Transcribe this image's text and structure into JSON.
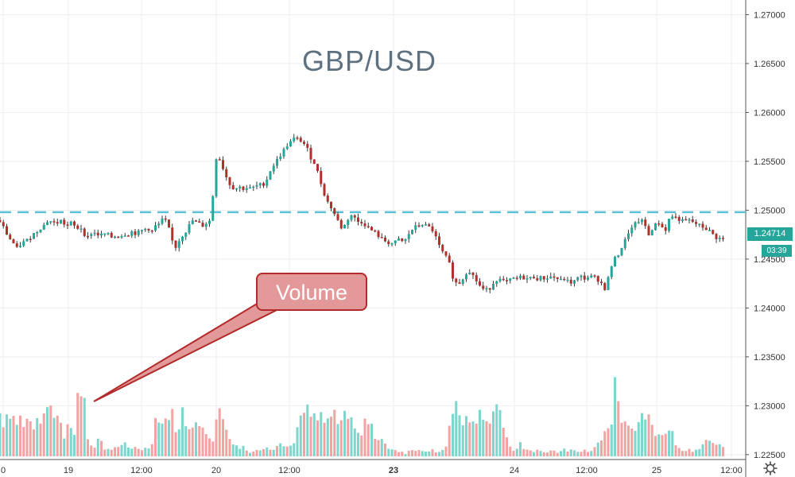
{
  "chart_data": {
    "type": "candlestick",
    "title": "GBP/USD",
    "y_axis": {
      "position": "right",
      "range": [
        1.2245,
        1.2715
      ],
      "ticks": [
        "1.27000",
        "1.26500",
        "1.26000",
        "1.25500",
        "1.25000",
        "1.24500",
        "1.24000",
        "1.23500",
        "1.23000",
        "1.22500"
      ]
    },
    "x_axis": {
      "ticks": [
        {
          "label": "0",
          "bold": false
        },
        {
          "label": "19",
          "bold": false
        },
        {
          "label": "12:00",
          "bold": false
        },
        {
          "label": "20",
          "bold": false
        },
        {
          "label": "12:00",
          "bold": false
        },
        {
          "label": "23",
          "bold": true
        },
        {
          "label": "24",
          "bold": false
        },
        {
          "label": "12:00",
          "bold": false
        },
        {
          "label": "25",
          "bold": false
        },
        {
          "label": "12:00",
          "bold": false
        }
      ]
    },
    "reference_line": {
      "value": 1.2498,
      "style": "dashed",
      "color": "#5bc0d8"
    },
    "last_price": "1.24714",
    "countdown": "03:39",
    "annotation": {
      "text": "Volume"
    },
    "grid": true,
    "colors": {
      "up": "#26a69a",
      "down": "#b0312b",
      "volume_up": "#7fd6cc",
      "volume_down": "#f4a3a3"
    },
    "price_path": [
      [
        0,
        1.249
      ],
      [
        5,
        1.2488
      ],
      [
        10,
        1.248
      ],
      [
        15,
        1.2472
      ],
      [
        20,
        1.2468
      ],
      [
        25,
        1.246
      ],
      [
        30,
        1.2465
      ],
      [
        35,
        1.2468
      ],
      [
        40,
        1.247
      ],
      [
        45,
        1.2475
      ],
      [
        50,
        1.2478
      ],
      [
        55,
        1.2482
      ],
      [
        60,
        1.2485
      ],
      [
        65,
        1.249
      ],
      [
        70,
        1.2488
      ],
      [
        75,
        1.2486
      ],
      [
        80,
        1.249
      ],
      [
        85,
        1.2486
      ],
      [
        90,
        1.2484
      ],
      [
        95,
        1.2488
      ],
      [
        100,
        1.248
      ],
      [
        105,
        1.2484
      ],
      [
        110,
        1.2476
      ],
      [
        115,
        1.2472
      ],
      [
        120,
        1.2478
      ],
      [
        125,
        1.2476
      ],
      [
        130,
        1.2474
      ],
      [
        135,
        1.2476
      ],
      [
        140,
        1.2475
      ],
      [
        145,
        1.2472
      ],
      [
        150,
        1.2474
      ],
      [
        155,
        1.2473
      ],
      [
        160,
        1.2476
      ],
      [
        165,
        1.2475
      ],
      [
        170,
        1.2478
      ],
      [
        175,
        1.2476
      ],
      [
        180,
        1.2478
      ],
      [
        185,
        1.248
      ],
      [
        190,
        1.2482
      ],
      [
        195,
        1.2478
      ],
      [
        200,
        1.2484
      ],
      [
        205,
        1.2486
      ],
      [
        210,
        1.2492
      ],
      [
        215,
        1.2486
      ],
      [
        220,
        1.247
      ],
      [
        225,
        1.2462
      ],
      [
        230,
        1.247
      ],
      [
        235,
        1.2476
      ],
      [
        240,
        1.248
      ],
      [
        245,
        1.249
      ],
      [
        250,
        1.2488
      ],
      [
        255,
        1.2486
      ],
      [
        260,
        1.2484
      ],
      [
        265,
        1.2488
      ],
      [
        270,
        1.249
      ],
      [
        275,
        1.2552
      ],
      [
        278,
        1.2556
      ],
      [
        282,
        1.255
      ],
      [
        286,
        1.254
      ],
      [
        290,
        1.2532
      ],
      [
        295,
        1.2524
      ],
      [
        300,
        1.2522
      ],
      [
        305,
        1.2524
      ],
      [
        310,
        1.2522
      ],
      [
        315,
        1.2523
      ],
      [
        320,
        1.2522
      ],
      [
        325,
        1.2524
      ],
      [
        330,
        1.2526
      ],
      [
        335,
        1.2526
      ],
      [
        340,
        1.2532
      ],
      [
        345,
        1.2542
      ],
      [
        350,
        1.2548
      ],
      [
        355,
        1.2554
      ],
      [
        360,
        1.256
      ],
      [
        365,
        1.2566
      ],
      [
        370,
        1.257
      ],
      [
        375,
        1.2574
      ],
      [
        380,
        1.2572
      ],
      [
        385,
        1.257
      ],
      [
        390,
        1.2564
      ],
      [
        395,
        1.2554
      ],
      [
        400,
        1.2548
      ],
      [
        405,
        1.2536
      ],
      [
        410,
        1.2522
      ],
      [
        415,
        1.251
      ],
      [
        420,
        1.2504
      ],
      [
        425,
        1.2496
      ],
      [
        430,
        1.2488
      ],
      [
        435,
        1.248
      ],
      [
        440,
        1.2488
      ],
      [
        445,
        1.2496
      ],
      [
        450,
        1.2492
      ],
      [
        455,
        1.2488
      ],
      [
        460,
        1.2488
      ],
      [
        465,
        1.2484
      ],
      [
        470,
        1.248
      ],
      [
        475,
        1.2478
      ],
      [
        480,
        1.2474
      ],
      [
        485,
        1.247
      ],
      [
        490,
        1.2468
      ],
      [
        495,
        1.2466
      ],
      [
        500,
        1.2466
      ],
      [
        505,
        1.247
      ],
      [
        510,
        1.2468
      ],
      [
        515,
        1.247
      ],
      [
        520,
        1.2478
      ],
      [
        525,
        1.2482
      ],
      [
        530,
        1.2484
      ],
      [
        535,
        1.2486
      ],
      [
        540,
        1.2484
      ],
      [
        545,
        1.2482
      ],
      [
        550,
        1.2478
      ],
      [
        555,
        1.2466
      ],
      [
        560,
        1.2458
      ],
      [
        565,
        1.2452
      ],
      [
        570,
        1.2444
      ],
      [
        575,
        1.2428
      ],
      [
        580,
        1.2424
      ],
      [
        585,
        1.2428
      ],
      [
        590,
        1.2436
      ],
      [
        595,
        1.2438
      ],
      [
        600,
        1.2432
      ],
      [
        605,
        1.2426
      ],
      [
        610,
        1.242
      ],
      [
        615,
        1.2418
      ],
      [
        620,
        1.242
      ],
      [
        625,
        1.2426
      ],
      [
        630,
        1.243
      ],
      [
        635,
        1.2428
      ],
      [
        640,
        1.2426
      ],
      [
        645,
        1.2428
      ],
      [
        650,
        1.243
      ],
      [
        655,
        1.243
      ],
      [
        660,
        1.2432
      ],
      [
        665,
        1.243
      ],
      [
        670,
        1.243
      ],
      [
        675,
        1.2432
      ],
      [
        680,
        1.243
      ],
      [
        685,
        1.2431
      ],
      [
        690,
        1.243
      ],
      [
        695,
        1.2432
      ],
      [
        700,
        1.2432
      ],
      [
        705,
        1.243
      ],
      [
        710,
        1.2428
      ],
      [
        715,
        1.243
      ],
      [
        720,
        1.2426
      ],
      [
        725,
        1.2426
      ],
      [
        730,
        1.243
      ],
      [
        735,
        1.2432
      ],
      [
        740,
        1.243
      ],
      [
        745,
        1.2432
      ],
      [
        750,
        1.2432
      ],
      [
        755,
        1.243
      ],
      [
        760,
        1.2426
      ],
      [
        765,
        1.242
      ],
      [
        770,
        1.2432
      ],
      [
        775,
        1.2448
      ],
      [
        780,
        1.2452
      ],
      [
        785,
        1.246
      ],
      [
        790,
        1.2468
      ],
      [
        795,
        1.2478
      ],
      [
        800,
        1.2482
      ],
      [
        805,
        1.2488
      ],
      [
        810,
        1.249
      ],
      [
        815,
        1.2486
      ],
      [
        820,
        1.2474
      ],
      [
        825,
        1.2482
      ],
      [
        830,
        1.2486
      ],
      [
        835,
        1.2488
      ],
      [
        840,
        1.2476
      ],
      [
        845,
        1.249
      ],
      [
        850,
        1.2494
      ],
      [
        855,
        1.2492
      ],
      [
        860,
        1.249
      ],
      [
        865,
        1.2488
      ],
      [
        870,
        1.249
      ],
      [
        875,
        1.2488
      ],
      [
        880,
        1.2486
      ],
      [
        885,
        1.2484
      ],
      [
        890,
        1.2482
      ],
      [
        895,
        1.248
      ],
      [
        900,
        1.2476
      ],
      [
        905,
        1.2472
      ],
      [
        910,
        1.2471
      ]
    ],
    "volume_path": [
      [
        0,
        0.33
      ],
      [
        5,
        0.25
      ],
      [
        10,
        0.36
      ],
      [
        15,
        0.33
      ],
      [
        20,
        0.25
      ],
      [
        25,
        0.3
      ],
      [
        30,
        0.22
      ],
      [
        35,
        0.28
      ],
      [
        40,
        0.25
      ],
      [
        45,
        0.22
      ],
      [
        50,
        0.3
      ],
      [
        55,
        0.27
      ],
      [
        60,
        0.4
      ],
      [
        65,
        0.35
      ],
      [
        70,
        0.33
      ],
      [
        75,
        0.3
      ],
      [
        80,
        0.14
      ],
      [
        85,
        0.26
      ],
      [
        90,
        0.26
      ],
      [
        95,
        0.15
      ],
      [
        98,
        0.52
      ],
      [
        102,
        0.44
      ],
      [
        106,
        0.42
      ],
      [
        110,
        0.16
      ],
      [
        115,
        0.08
      ],
      [
        120,
        0.08
      ],
      [
        125,
        0.15
      ],
      [
        130,
        0.05
      ],
      [
        135,
        0.06
      ],
      [
        140,
        0.05
      ],
      [
        145,
        0.08
      ],
      [
        150,
        0.06
      ],
      [
        155,
        0.12
      ],
      [
        160,
        0.06
      ],
      [
        165,
        0.05
      ],
      [
        170,
        0.07
      ],
      [
        175,
        0.06
      ],
      [
        180,
        0.05
      ],
      [
        185,
        0.07
      ],
      [
        190,
        0.06
      ],
      [
        195,
        0.28
      ],
      [
        200,
        0.31
      ],
      [
        205,
        0.24
      ],
      [
        210,
        0.3
      ],
      [
        215,
        0.35
      ],
      [
        220,
        0.24
      ],
      [
        225,
        0.18
      ],
      [
        230,
        0.37
      ],
      [
        235,
        0.22
      ],
      [
        240,
        0.25
      ],
      [
        245,
        0.28
      ],
      [
        250,
        0.2
      ],
      [
        255,
        0.22
      ],
      [
        260,
        0.18
      ],
      [
        265,
        0.16
      ],
      [
        270,
        0.1
      ],
      [
        275,
        0.48
      ],
      [
        279,
        0.3
      ],
      [
        283,
        0.22
      ],
      [
        287,
        0.2
      ],
      [
        290,
        0.1
      ],
      [
        295,
        0.12
      ],
      [
        300,
        0.05
      ],
      [
        305,
        0.08
      ],
      [
        310,
        0.05
      ],
      [
        315,
        0.03
      ],
      [
        320,
        0.05
      ],
      [
        325,
        0.06
      ],
      [
        330,
        0.05
      ],
      [
        335,
        0.07
      ],
      [
        340,
        0.05
      ],
      [
        345,
        0.06
      ],
      [
        350,
        0.08
      ],
      [
        355,
        0.09
      ],
      [
        360,
        0.06
      ],
      [
        365,
        0.08
      ],
      [
        370,
        0.09
      ],
      [
        375,
        0.25
      ],
      [
        380,
        0.32
      ],
      [
        385,
        0.36
      ],
      [
        390,
        0.28
      ],
      [
        395,
        0.3
      ],
      [
        400,
        0.27
      ],
      [
        405,
        0.3
      ],
      [
        410,
        0.32
      ],
      [
        415,
        0.26
      ],
      [
        420,
        0.34
      ],
      [
        425,
        0.28
      ],
      [
        430,
        0.3
      ],
      [
        435,
        0.29
      ],
      [
        440,
        0.4
      ],
      [
        445,
        0.25
      ],
      [
        450,
        0.2
      ],
      [
        455,
        0.15
      ],
      [
        460,
        0.28
      ],
      [
        465,
        0.25
      ],
      [
        470,
        0.18
      ],
      [
        475,
        0.12
      ],
      [
        480,
        0.14
      ],
      [
        485,
        0.1
      ],
      [
        490,
        0.06
      ],
      [
        495,
        0.05
      ],
      [
        500,
        0.03
      ],
      [
        505,
        0.04
      ],
      [
        510,
        0.02
      ],
      [
        515,
        0.04
      ],
      [
        520,
        0.05
      ],
      [
        525,
        0.04
      ],
      [
        530,
        0.05
      ],
      [
        535,
        0.03
      ],
      [
        540,
        0.04
      ],
      [
        545,
        0.05
      ],
      [
        550,
        0.03
      ],
      [
        555,
        0.05
      ],
      [
        560,
        0.04
      ],
      [
        565,
        0.25
      ],
      [
        570,
        0.28
      ],
      [
        575,
        0.41
      ],
      [
        580,
        0.3
      ],
      [
        585,
        0.25
      ],
      [
        590,
        0.28
      ],
      [
        595,
        0.26
      ],
      [
        600,
        0.3
      ],
      [
        605,
        0.32
      ],
      [
        610,
        0.24
      ],
      [
        615,
        0.28
      ],
      [
        620,
        0.36
      ],
      [
        625,
        0.36
      ],
      [
        630,
        0.36
      ],
      [
        635,
        0.15
      ],
      [
        640,
        0.1
      ],
      [
        645,
        0.05
      ],
      [
        650,
        0.06
      ],
      [
        655,
        0.1
      ],
      [
        660,
        0.04
      ],
      [
        665,
        0.06
      ],
      [
        670,
        0.03
      ],
      [
        675,
        0.05
      ],
      [
        680,
        0.04
      ],
      [
        685,
        0.03
      ],
      [
        690,
        0.04
      ],
      [
        695,
        0.05
      ],
      [
        700,
        0.03
      ],
      [
        705,
        0.04
      ],
      [
        710,
        0.05
      ],
      [
        715,
        0.04
      ],
      [
        720,
        0.05
      ],
      [
        725,
        0.03
      ],
      [
        730,
        0.04
      ],
      [
        735,
        0.05
      ],
      [
        740,
        0.03
      ],
      [
        745,
        0.05
      ],
      [
        750,
        0.08
      ],
      [
        755,
        0.12
      ],
      [
        760,
        0.22
      ],
      [
        765,
        0.26
      ],
      [
        770,
        0.24
      ],
      [
        775,
        0.75
      ],
      [
        780,
        0.3
      ],
      [
        785,
        0.32
      ],
      [
        790,
        0.28
      ],
      [
        795,
        0.25
      ],
      [
        800,
        0.2
      ],
      [
        805,
        0.3
      ],
      [
        810,
        0.27
      ],
      [
        815,
        0.35
      ],
      [
        820,
        0.22
      ],
      [
        825,
        0.14
      ],
      [
        830,
        0.18
      ],
      [
        835,
        0.2
      ],
      [
        840,
        0.15
      ],
      [
        845,
        0.24
      ],
      [
        850,
        0.1
      ],
      [
        855,
        0.05
      ],
      [
        860,
        0.04
      ],
      [
        865,
        0.06
      ],
      [
        870,
        0.04
      ],
      [
        875,
        0.05
      ],
      [
        880,
        0.07
      ],
      [
        885,
        0.1
      ],
      [
        890,
        0.12
      ],
      [
        895,
        0.08
      ],
      [
        900,
        0.1
      ],
      [
        905,
        0.08
      ],
      [
        910,
        0.06
      ]
    ]
  }
}
